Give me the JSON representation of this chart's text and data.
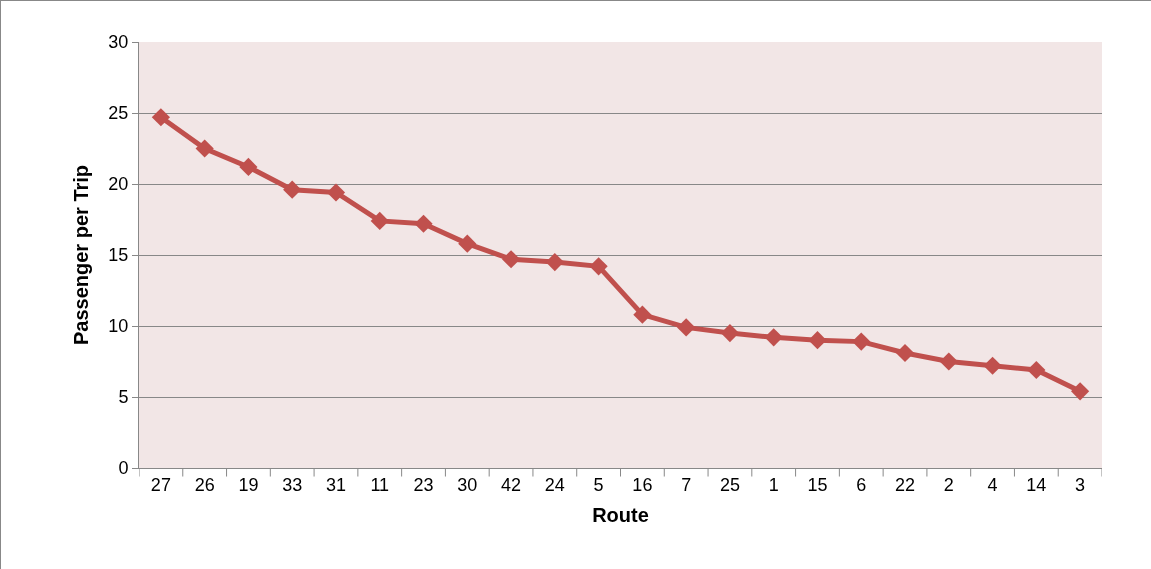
{
  "chart_data": {
    "type": "line",
    "xlabel": "Route",
    "ylabel": "Passenger per Trip",
    "categories": [
      "27",
      "26",
      "19",
      "33",
      "31",
      "11",
      "23",
      "30",
      "42",
      "24",
      "5",
      "16",
      "7",
      "25",
      "1",
      "15",
      "6",
      "22",
      "2",
      "4",
      "14",
      "3"
    ],
    "series": [
      {
        "color": "#c0504d",
        "values": [
          24.7,
          22.5,
          21.2,
          19.6,
          19.4,
          17.4,
          17.2,
          15.8,
          14.7,
          14.5,
          14.2,
          10.8,
          9.9,
          9.5,
          9.2,
          9.0,
          8.9,
          8.1,
          7.5,
          7.2,
          6.9,
          5.4
        ]
      }
    ],
    "ylim": [
      0,
      30
    ],
    "yticks": [
      0,
      5,
      10,
      15,
      20,
      25,
      30
    ],
    "grid": "y",
    "marker": "diamond",
    "line_style": "solid"
  }
}
